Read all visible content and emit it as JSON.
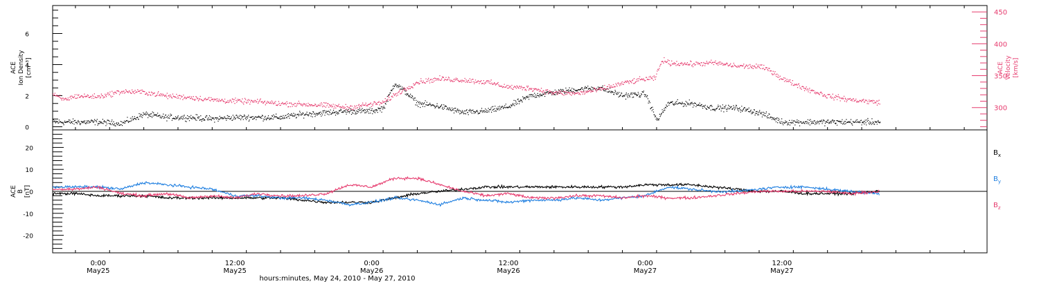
{
  "title_line": "hours:minutes, May 24, 2010 - May 27, 2010",
  "time_ticks": [
    {
      "hour": 18,
      "label1": "0:00",
      "label2": "May25"
    },
    {
      "hour": 30,
      "label1": "12:00",
      "label2": "May25"
    },
    {
      "hour": 42,
      "label1": "0:00",
      "label2": "May26"
    },
    {
      "hour": 54,
      "label1": "12:00",
      "label2": "May26"
    },
    {
      "hour": 66,
      "label1": "0:00",
      "label2": "May27"
    },
    {
      "hour": 78,
      "label1": "12:00",
      "label2": "May27"
    }
  ],
  "x_range_hours": [
    14,
    96
  ],
  "data_end_hour": 86.6,
  "colors": {
    "density": "#000000",
    "velocity": "#e63b6e",
    "bx": "#000000",
    "by": "#1f7fe0",
    "bz": "#e63b6e"
  },
  "chart_data": [
    {
      "type": "scatter",
      "panel": "top",
      "left_axis_label": [
        "ACE",
        "Ion Density",
        "[cm⁻³]"
      ],
      "right_axis_label": [
        "ACE",
        "Velocity",
        "[km/s]"
      ],
      "left_ticks": [
        0,
        2,
        4,
        6
      ],
      "right_ticks": [
        300,
        350,
        400,
        450
      ],
      "left_range": [
        -0.2,
        7.8
      ],
      "right_range": [
        265,
        460
      ],
      "x_unit": "hours since 2010-05-24 00:00",
      "series": [
        {
          "axis": "left",
          "x": [
            14,
            16,
            18,
            20,
            22,
            24,
            26,
            28,
            30,
            32,
            34,
            36,
            38,
            40,
            42,
            43,
            44,
            45,
            46,
            48,
            50,
            52,
            54,
            56,
            58,
            60,
            62,
            64,
            66,
            67,
            68,
            70,
            72,
            74,
            76,
            78,
            80,
            82,
            84,
            86.5
          ],
          "y": [
            0.3,
            0.3,
            0.3,
            0.2,
            0.8,
            0.6,
            0.6,
            0.5,
            0.6,
            0.6,
            0.6,
            0.8,
            0.9,
            1.0,
            1.0,
            1.2,
            2.8,
            2.2,
            1.5,
            1.3,
            0.9,
            1.0,
            1.3,
            2.0,
            2.2,
            2.4,
            2.5,
            2.0,
            2.1,
            0.4,
            1.5,
            1.5,
            1.2,
            1.2,
            0.9,
            0.3,
            0.3,
            0.3,
            0.3,
            0.3
          ]
        },
        {
          "axis": "right",
          "x": [
            14,
            15,
            16,
            18,
            20,
            22,
            24,
            26,
            28,
            30,
            32,
            34,
            36,
            38,
            40,
            41,
            42,
            43,
            44,
            46,
            48,
            50,
            52,
            54,
            56,
            58,
            60,
            62,
            64,
            66,
            66.8,
            67.5,
            68,
            70,
            72,
            74,
            76,
            77,
            78,
            80,
            82,
            84,
            86.5
          ],
          "y": [
            320,
            312,
            318,
            317,
            325,
            324,
            318,
            316,
            312,
            310,
            309,
            306,
            305,
            303,
            300,
            303,
            305,
            308,
            320,
            340,
            345,
            343,
            340,
            332,
            330,
            323,
            322,
            328,
            338,
            345,
            345,
            375,
            370,
            368,
            370,
            365,
            364,
            358,
            345,
            330,
            318,
            312,
            308
          ]
        }
      ]
    },
    {
      "type": "line",
      "panel": "bottom",
      "left_axis_label": [
        "ACE",
        "B",
        "[nT]"
      ],
      "left_ticks": [
        -20,
        -10,
        0,
        10,
        20
      ],
      "y_range": [
        -28,
        28
      ],
      "x_unit": "hours since 2010-05-24 00:00",
      "x": [
        14,
        16,
        18,
        20,
        22,
        24,
        26,
        28,
        30,
        32,
        34,
        36,
        38,
        40,
        42,
        44,
        46,
        48,
        50,
        52,
        54,
        56,
        58,
        60,
        62,
        64,
        66,
        68,
        70,
        72,
        74,
        76,
        78,
        80,
        82,
        84,
        86.5
      ],
      "series": [
        {
          "name": "B",
          "sub": "x",
          "color_key": "bx",
          "values": [
            -1,
            -1,
            -2,
            -2,
            -2,
            -3,
            -3,
            -3,
            -3,
            -3,
            -3,
            -4,
            -5,
            -5,
            -5,
            -3,
            -1,
            0,
            1,
            2,
            2,
            2,
            2,
            2,
            2,
            2,
            3,
            3,
            3,
            2,
            1,
            0,
            0,
            -1,
            -1,
            -1,
            0
          ]
        },
        {
          "name": "B",
          "sub": "y",
          "color_key": "by",
          "values": [
            2,
            2,
            2,
            1,
            4,
            3,
            2,
            1,
            -2,
            -2,
            -3,
            -3,
            -4,
            -6,
            -5,
            -3,
            -4,
            -6,
            -3,
            -4,
            -5,
            -4,
            -4,
            -3,
            -4,
            -3,
            -2,
            2,
            1,
            0,
            0,
            1,
            2,
            2,
            1,
            0,
            -1
          ]
        },
        {
          "name": "B",
          "sub": "z",
          "color_key": "bz",
          "values": [
            1,
            1,
            2,
            -1,
            -2,
            -1,
            -3,
            -2,
            -3,
            -1,
            -2,
            -2,
            -1,
            3,
            2,
            6,
            6,
            3,
            0,
            -2,
            -1,
            -3,
            -3,
            -2,
            -2,
            -3,
            -2,
            -3,
            -3,
            -2,
            -1,
            0,
            0,
            0,
            0,
            -1,
            0
          ]
        }
      ]
    }
  ]
}
